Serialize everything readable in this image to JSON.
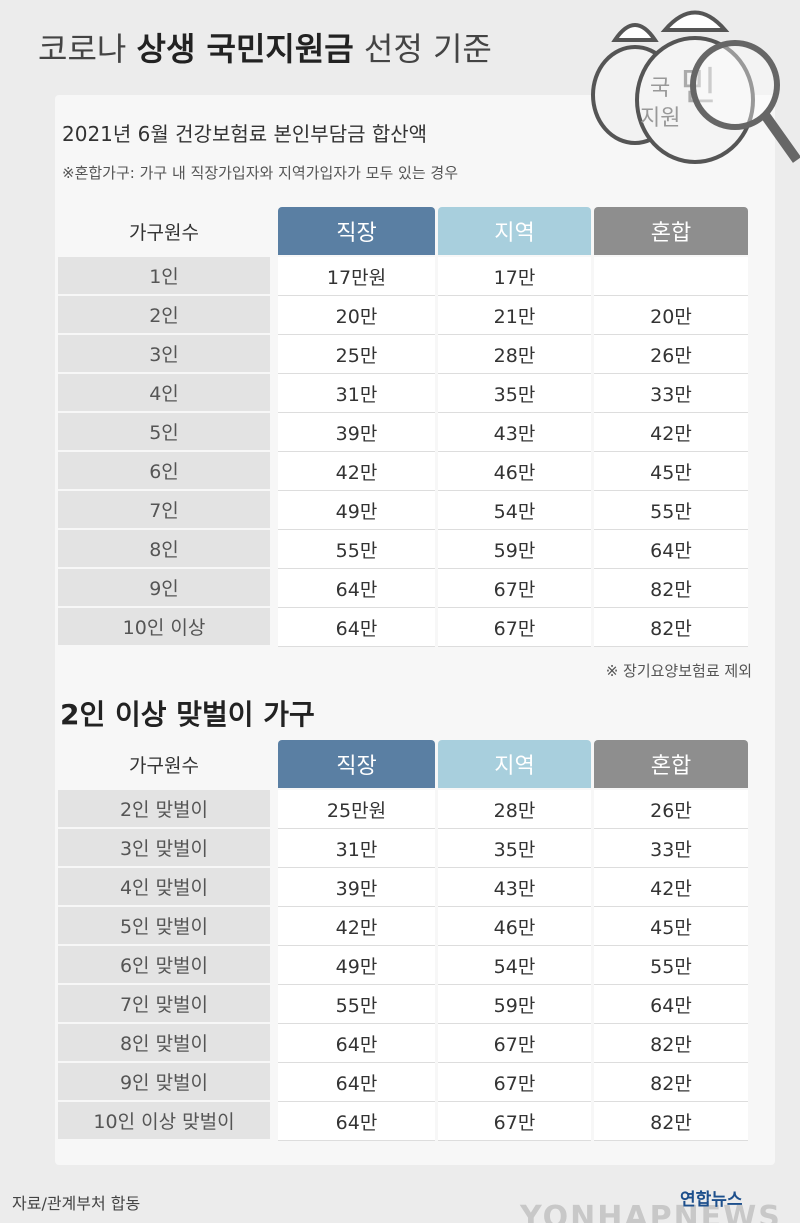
{
  "header": {
    "title_parts": [
      "코로나 ",
      "상생 국민지원금",
      " 선정 기준"
    ],
    "icon_text": [
      "국",
      "민",
      "지원"
    ]
  },
  "section1": {
    "title": "2021년 6월 건강보험료 본인부담금 합산액",
    "note": "※혼합가구: 가구 내 직장가입자와 지역가입자가 모두 있는 경우",
    "table": {
      "header": [
        "가구원수",
        "직장",
        "지역",
        "혼합"
      ],
      "rows": [
        [
          "1인",
          "17만원",
          "17만",
          null
        ],
        [
          "2인",
          "20만",
          "21만",
          "20만"
        ],
        [
          "3인",
          "25만",
          "28만",
          "26만"
        ],
        [
          "4인",
          "31만",
          "35만",
          "33만"
        ],
        [
          "5인",
          "39만",
          "43만",
          "42만"
        ],
        [
          "6인",
          "42만",
          "46만",
          "45만"
        ],
        [
          "7인",
          "49만",
          "54만",
          "55만"
        ],
        [
          "8인",
          "55만",
          "59만",
          "64만"
        ],
        [
          "9인",
          "64만",
          "67만",
          "82만"
        ],
        [
          "10인 이상",
          "64만",
          "67만",
          "82만"
        ]
      ]
    },
    "footnote": "※ 장기요양보험료 제외"
  },
  "section2": {
    "title": "2인 이상 맞벌이 가구",
    "table": {
      "header": [
        "가구원수",
        "직장",
        "지역",
        "혼합"
      ],
      "rows": [
        [
          "2인 맞벌이",
          "25만원",
          "28만",
          "26만"
        ],
        [
          "3인 맞벌이",
          "31만",
          "35만",
          "33만"
        ],
        [
          "4인 맞벌이",
          "39만",
          "43만",
          "42만"
        ],
        [
          "5인 맞벌이",
          "42만",
          "46만",
          "45만"
        ],
        [
          "6인 맞벌이",
          "49만",
          "54만",
          "55만"
        ],
        [
          "7인 맞벌이",
          "55만",
          "59만",
          "64만"
        ],
        [
          "8인 맞벌이",
          "64만",
          "67만",
          "82만"
        ],
        [
          "9인 맞벌이",
          "64만",
          "67만",
          "82만"
        ],
        [
          "10인 이상 맞벌이",
          "64만",
          "67만",
          "82만"
        ]
      ]
    }
  },
  "footer": {
    "source": "자료/관계부처 합동",
    "logo": "연합뉴스",
    "watermark": "YONHAPNEWS"
  }
}
